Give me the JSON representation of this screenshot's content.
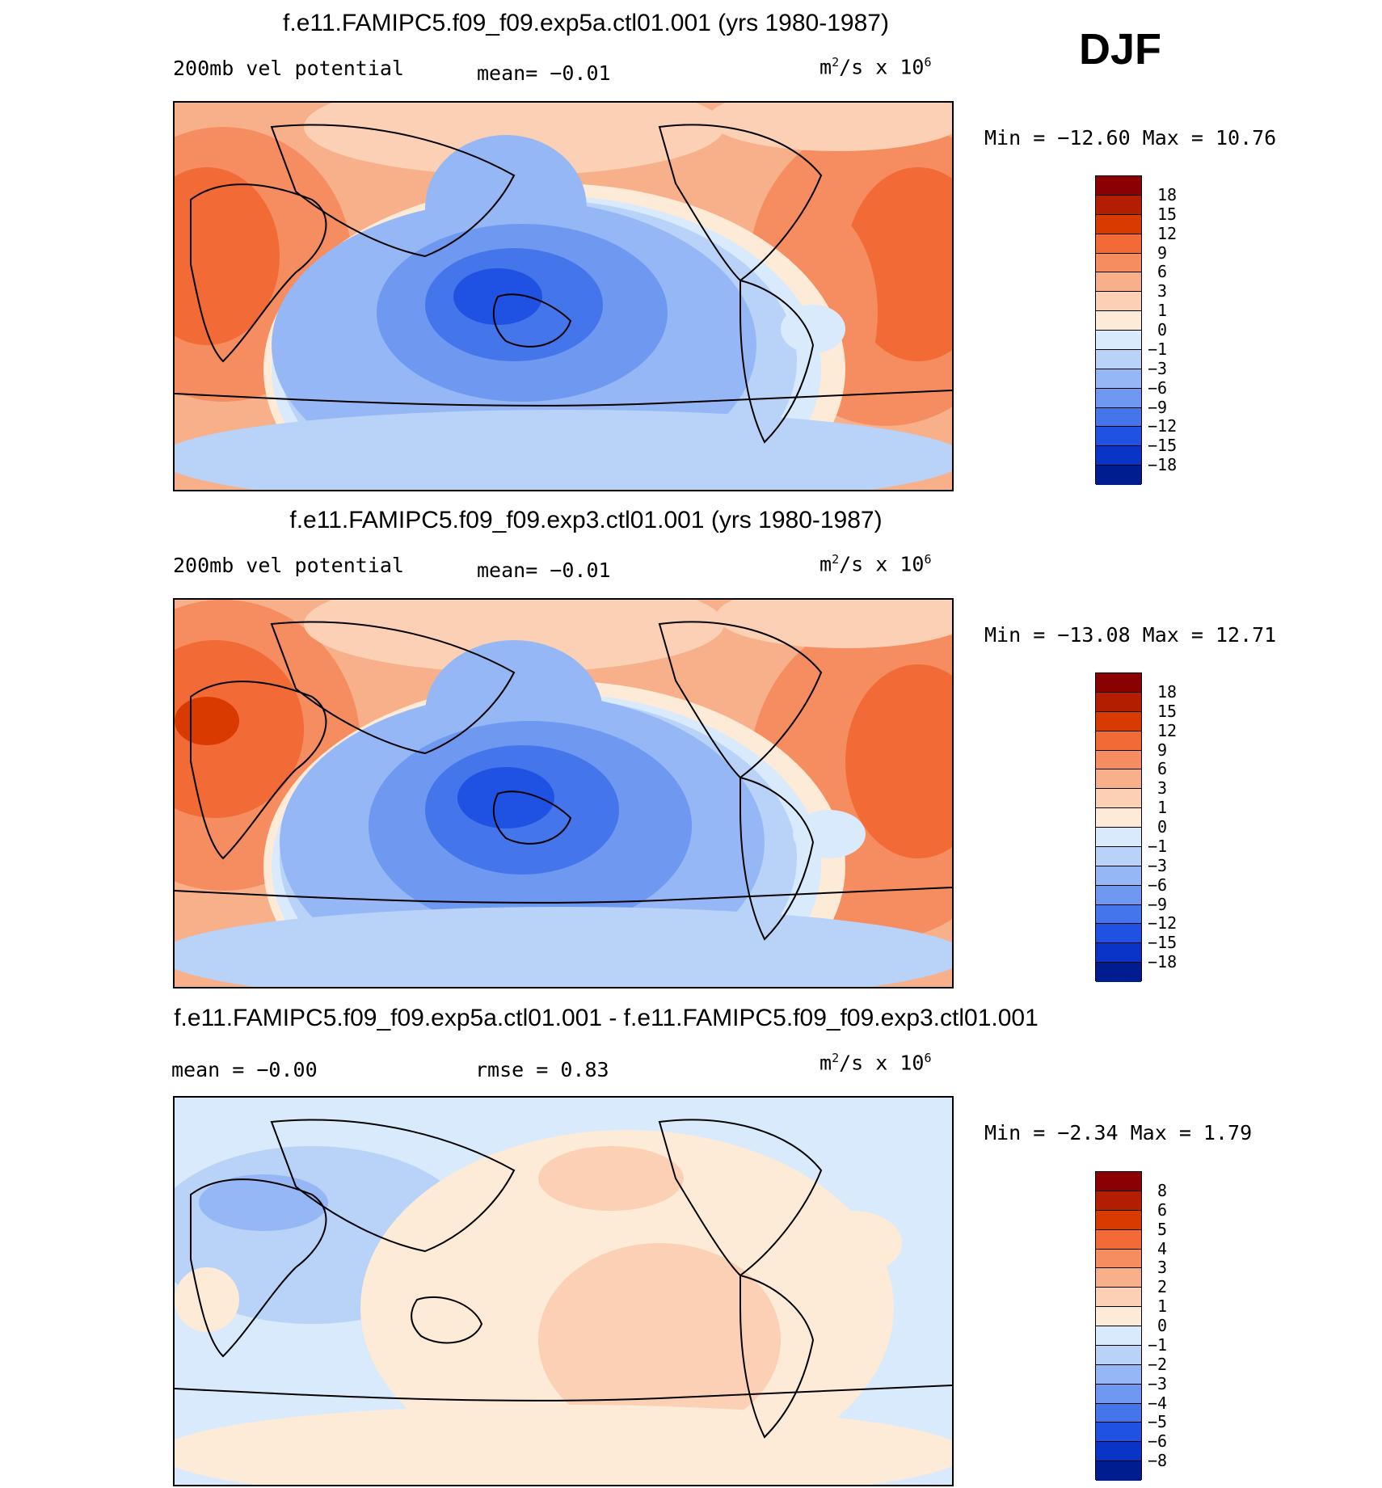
{
  "season": "DJF",
  "panels": [
    {
      "title": "f.e11.FAMIPC5.f09_f09.exp5a.ctl01.001 (yrs 1980-1987)",
      "left_label": "200mb vel potential",
      "mid_label": "mean=  -0.01",
      "units_base": "m",
      "units_sup1": "2",
      "units_mid": "/s x 10",
      "units_sup2": "6",
      "minmax": "Min = -12.60 Max =  10.76",
      "colorbar": {
        "labels": [
          "18",
          "15",
          "12",
          "9",
          "6",
          "3",
          "1",
          "0",
          "-1",
          "-3",
          "-6",
          "-9",
          "-12",
          "-15",
          "-18"
        ],
        "colors": [
          "#8b0000",
          "#b31d00",
          "#d93a00",
          "#f26a35",
          "#f58d60",
          "#f8b08a",
          "#fbd0b5",
          "#fdebd8",
          "#d8eafb",
          "#b8d2f8",
          "#96b7f5",
          "#6f98f0",
          "#4575ea",
          "#1f52e3",
          "#0a33c8",
          "#001d90"
        ]
      }
    },
    {
      "title": "f.e11.FAMIPC5.f09_f09.exp3.ctl01.001 (yrs 1980-1987)",
      "left_label": "200mb vel potential",
      "mid_label": "mean=  -0.01",
      "units_base": "m",
      "units_sup1": "2",
      "units_mid": "/s x 10",
      "units_sup2": "6",
      "minmax": "Min = -13.08 Max =  12.71",
      "colorbar": {
        "labels": [
          "18",
          "15",
          "12",
          "9",
          "6",
          "3",
          "1",
          "0",
          "-1",
          "-3",
          "-6",
          "-9",
          "-12",
          "-15",
          "-18"
        ],
        "colors": [
          "#8b0000",
          "#b31d00",
          "#d93a00",
          "#f26a35",
          "#f58d60",
          "#f8b08a",
          "#fbd0b5",
          "#fdebd8",
          "#d8eafb",
          "#b8d2f8",
          "#96b7f5",
          "#6f98f0",
          "#4575ea",
          "#1f52e3",
          "#0a33c8",
          "#001d90"
        ]
      }
    },
    {
      "title": "f.e11.FAMIPC5.f09_f09.exp5a.ctl01.001 - f.e11.FAMIPC5.f09_f09.exp3.ctl01.001",
      "left_label": "mean =  -0.00",
      "mid_label": "rmse =   0.83",
      "units_base": "m",
      "units_sup1": "2",
      "units_mid": "/s x 10",
      "units_sup2": "6",
      "minmax": "Min =  -2.34 Max =   1.79",
      "colorbar": {
        "labels": [
          "8",
          "6",
          "5",
          "4",
          "3",
          "2",
          "1",
          "0",
          "-1",
          "-2",
          "-3",
          "-4",
          "-5",
          "-6",
          "-8"
        ],
        "colors": [
          "#8b0000",
          "#b31d00",
          "#d93a00",
          "#f26a35",
          "#f58d60",
          "#f8b08a",
          "#fbd0b5",
          "#fdebd8",
          "#d8eafb",
          "#b8d2f8",
          "#96b7f5",
          "#6f98f0",
          "#4575ea",
          "#1f52e3",
          "#0a33c8",
          "#001d90"
        ]
      }
    }
  ]
}
